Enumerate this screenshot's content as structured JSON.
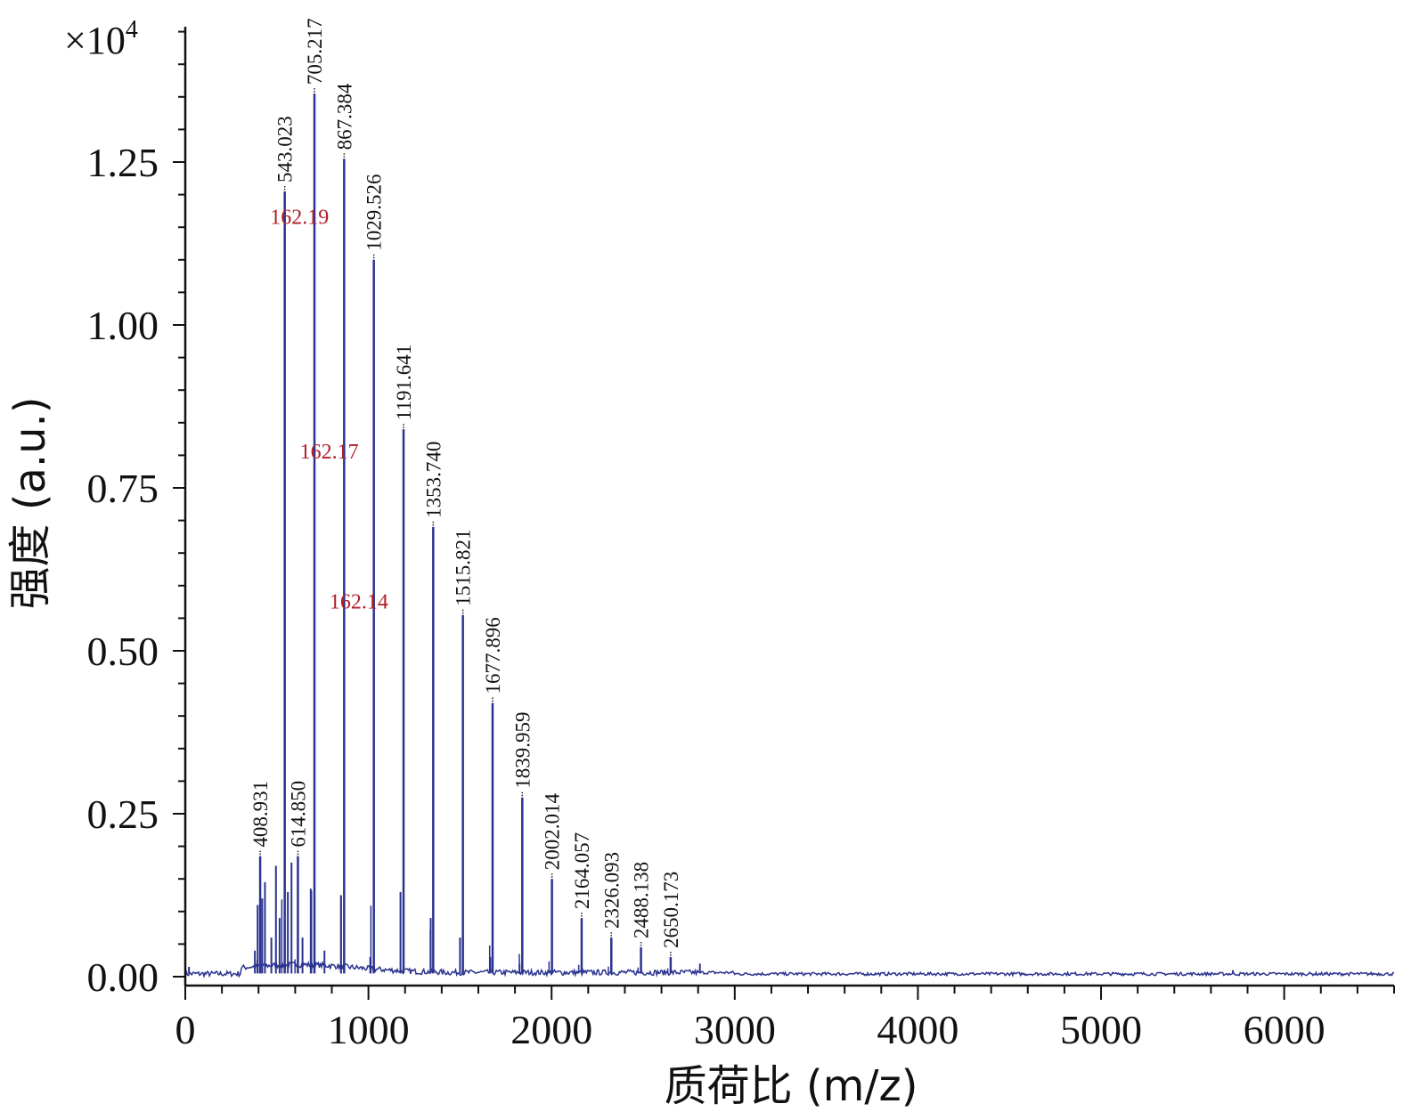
{
  "chart_data": {
    "type": "line",
    "title": "",
    "xlabel": "质荷比 (m/z)",
    "ylabel": "强度 (a.u.)",
    "y_multiplier": "×10",
    "y_multiplier_exp": "4",
    "xlim": [
      0,
      6600
    ],
    "ylim": [
      0,
      1.45
    ],
    "x_ticks": [
      0,
      1000,
      2000,
      3000,
      4000,
      5000,
      6000
    ],
    "x_tick_labels": [
      "0",
      "1000",
      "2000",
      "3000",
      "4000",
      "5000",
      "6000"
    ],
    "y_ticks": [
      0,
      0.25,
      0.5,
      0.75,
      1.0,
      1.25
    ],
    "y_tick_labels": [
      "0.00",
      "0.25",
      "0.50",
      "0.75",
      "1.00",
      "1.25"
    ],
    "line_color": "#2b3390",
    "grid": false,
    "series": [
      {
        "peaks": [
          {
            "x": 408.931,
            "y": 0.185,
            "label": "408.931"
          },
          {
            "x": 543.023,
            "y": 1.205,
            "label": "543.023"
          },
          {
            "x": 614.85,
            "y": 0.185,
            "label": "614.850"
          },
          {
            "x": 705.217,
            "y": 1.355,
            "label": "705.217"
          },
          {
            "x": 867.384,
            "y": 1.255,
            "label": "867.384"
          },
          {
            "x": 1029.526,
            "y": 1.1,
            "label": "1029.526"
          },
          {
            "x": 1191.641,
            "y": 0.84,
            "label": "1191.641"
          },
          {
            "x": 1353.74,
            "y": 0.69,
            "label": "1353.740"
          },
          {
            "x": 1515.821,
            "y": 0.555,
            "label": "1515.821"
          },
          {
            "x": 1677.896,
            "y": 0.42,
            "label": "1677.896"
          },
          {
            "x": 1839.959,
            "y": 0.275,
            "label": "1839.959"
          },
          {
            "x": 2002.014,
            "y": 0.15,
            "label": "2002.014"
          },
          {
            "x": 2164.057,
            "y": 0.09,
            "label": "2164.057"
          },
          {
            "x": 2326.093,
            "y": 0.06,
            "label": "2326.093"
          },
          {
            "x": 2488.138,
            "y": 0.045,
            "label": "2488.138"
          },
          {
            "x": 2650.173,
            "y": 0.03,
            "label": "2650.173"
          }
        ],
        "minor_peaks": [
          {
            "x": 20,
            "y": 0.015
          },
          {
            "x": 380,
            "y": 0.04
          },
          {
            "x": 395,
            "y": 0.11
          },
          {
            "x": 420,
            "y": 0.12
          },
          {
            "x": 435,
            "y": 0.145
          },
          {
            "x": 470,
            "y": 0.06
          },
          {
            "x": 495,
            "y": 0.17
          },
          {
            "x": 515,
            "y": 0.09
          },
          {
            "x": 560,
            "y": 0.13
          },
          {
            "x": 580,
            "y": 0.175
          },
          {
            "x": 640,
            "y": 0.06
          },
          {
            "x": 685,
            "y": 0.135
          },
          {
            "x": 760,
            "y": 0.04
          },
          {
            "x": 850,
            "y": 0.125
          },
          {
            "x": 1010,
            "y": 0.03
          },
          {
            "x": 1175,
            "y": 0.13
          },
          {
            "x": 1340,
            "y": 0.09
          },
          {
            "x": 1500,
            "y": 0.06
          },
          {
            "x": 1665,
            "y": 0.03
          },
          {
            "x": 1825,
            "y": 0.02
          },
          {
            "x": 2810,
            "y": 0.02
          },
          {
            "x": 5720,
            "y": 0.01
          }
        ]
      }
    ],
    "annotations": [
      {
        "text": "162.19",
        "x": 624,
        "y": 1.155
      },
      {
        "text": "162.17",
        "x": 786,
        "y": 0.795
      },
      {
        "text": "162.14",
        "x": 948,
        "y": 0.565
      }
    ]
  }
}
